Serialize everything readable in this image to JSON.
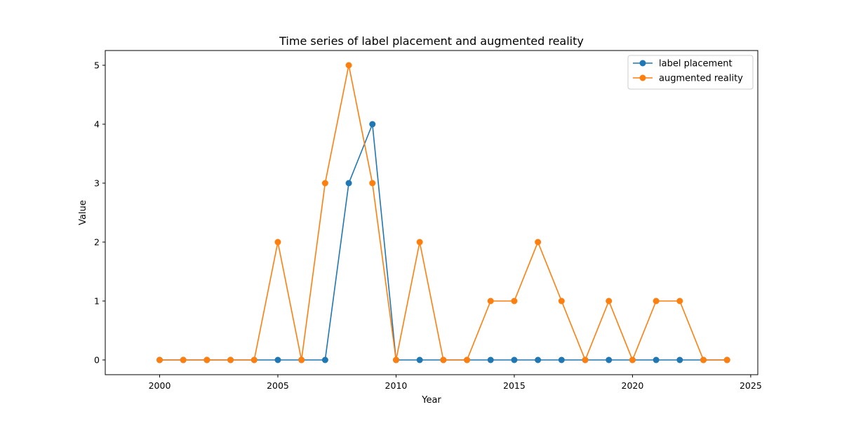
{
  "chart_data": {
    "type": "line",
    "title": "Time series of label placement and augmented reality",
    "xlabel": "Year",
    "ylabel": "Value",
    "xlim": [
      1997.7,
      2025.3
    ],
    "ylim": [
      -0.25,
      5.25
    ],
    "xticks": [
      2000,
      2005,
      2010,
      2015,
      2020,
      2025
    ],
    "yticks": [
      0,
      1,
      2,
      3,
      4,
      5
    ],
    "grid": false,
    "legend_position": "top-right",
    "x": [
      2000,
      2001,
      2002,
      2003,
      2004,
      2005,
      2006,
      2007,
      2008,
      2009,
      2010,
      2011,
      2012,
      2013,
      2014,
      2015,
      2016,
      2017,
      2018,
      2019,
      2020,
      2021,
      2022,
      2023,
      2024
    ],
    "series": [
      {
        "name": "label placement",
        "color": "#1f77b4",
        "values": [
          0,
          0,
          0,
          0,
          0,
          0,
          0,
          0,
          3,
          4,
          0,
          0,
          0,
          0,
          0,
          0,
          0,
          0,
          0,
          0,
          0,
          0,
          0,
          0,
          0
        ]
      },
      {
        "name": "augmented reality",
        "color": "#ff7f0e",
        "values": [
          0,
          0,
          0,
          0,
          0,
          2,
          0,
          3,
          5,
          3,
          0,
          2,
          0,
          0,
          1,
          1,
          2,
          1,
          0,
          1,
          0,
          1,
          1,
          0,
          0
        ]
      }
    ]
  }
}
